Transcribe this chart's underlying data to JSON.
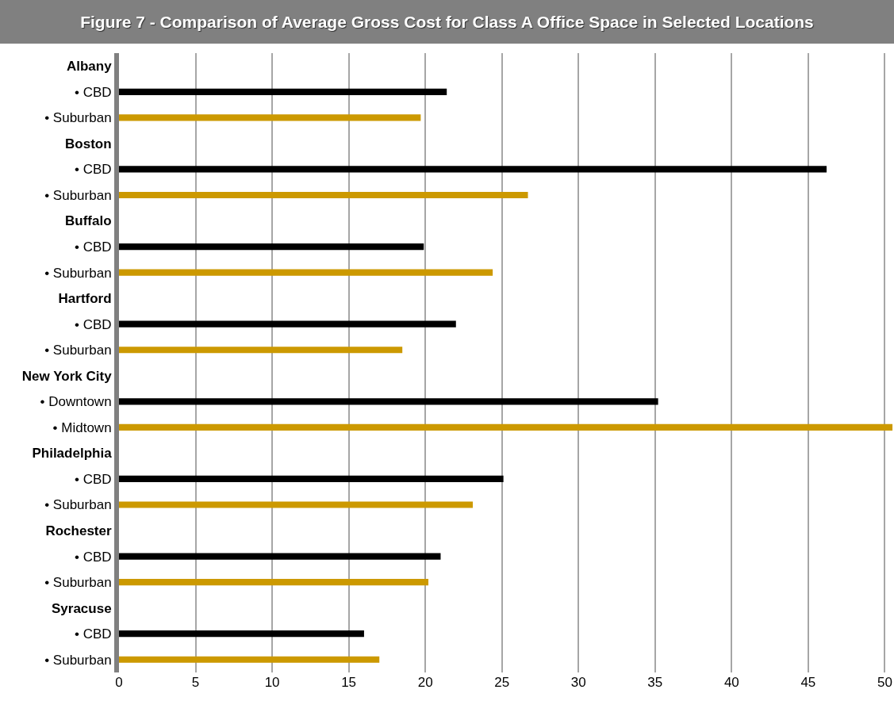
{
  "chart_data": {
    "type": "bar",
    "orientation": "horizontal",
    "title": "Figure 7 - Comparison of Average Gross Cost for Class A Office Space in Selected Locations",
    "categories": [
      "Albany",
      "• CBD",
      "• Suburban",
      "Boston",
      "• CBD",
      "• Suburban",
      "Buffalo",
      "• CBD",
      "• Suburban",
      "Hartford",
      "• CBD",
      "• Suburban",
      "New York City",
      "• Downtown",
      "• Midtown",
      "Philadelphia",
      "• CBD",
      "• Suburban",
      "Rochester",
      "• CBD",
      "• Suburban",
      "Syracuse",
      "• CBD",
      "• Suburban"
    ],
    "values": [
      null,
      21.4,
      19.7,
      null,
      46.2,
      26.7,
      null,
      19.9,
      24.4,
      null,
      22.0,
      18.5,
      null,
      35.2,
      50.5,
      null,
      25.1,
      23.1,
      null,
      21.0,
      20.2,
      null,
      16.0,
      17.0
    ],
    "colors": [
      null,
      "#000000",
      "#cc9900",
      null,
      "#000000",
      "#cc9900",
      null,
      "#000000",
      "#cc9900",
      null,
      "#000000",
      "#cc9900",
      null,
      "#000000",
      "#cc9900",
      null,
      "#000000",
      "#cc9900",
      null,
      "#000000",
      "#cc9900",
      null,
      "#000000",
      "#cc9900"
    ],
    "xlim": [
      0,
      50.6
    ],
    "xticks": [
      0,
      5,
      10,
      15,
      20,
      25,
      30,
      35,
      40,
      45,
      50
    ],
    "grid": "x"
  }
}
